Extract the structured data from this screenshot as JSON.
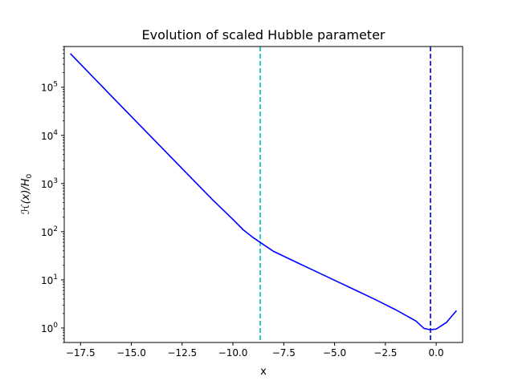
{
  "chart_data": {
    "type": "line",
    "title": "Evolution of scaled Hubble parameter",
    "xlabel": "x",
    "ylabel_parts": {
      "main": "ℋ(x)/H",
      "sub": "0"
    },
    "xlim": [
      -18.3,
      1.3
    ],
    "ylim": [
      0.5,
      700000
    ],
    "yscale": "log",
    "grid": false,
    "x_ticks": [
      -17.5,
      -15.0,
      -12.5,
      -10.0,
      -7.5,
      -5.0,
      -2.5,
      0.0
    ],
    "x_tick_labels": [
      "−17.5",
      "−15.0",
      "−12.5",
      "−10.0",
      "−7.5",
      "−5.0",
      "−2.5",
      "0.0"
    ],
    "y_ticks": [
      1,
      10,
      100,
      1000,
      10000,
      100000
    ],
    "y_tick_labels": [
      {
        "base": "10",
        "exp": "0"
      },
      {
        "base": "10",
        "exp": "1"
      },
      {
        "base": "10",
        "exp": "2"
      },
      {
        "base": "10",
        "exp": "3"
      },
      {
        "base": "10",
        "exp": "4"
      },
      {
        "base": "10",
        "exp": "5"
      }
    ],
    "series": [
      {
        "color": "#0000ff",
        "style": "solid",
        "x": [
          -18.0,
          -16.0,
          -14.0,
          -12.0,
          -11.0,
          -10.0,
          -9.5,
          -9.0,
          -8.66,
          -8.0,
          -7.0,
          -6.0,
          -5.0,
          -4.0,
          -3.0,
          -2.0,
          -1.0,
          -0.6,
          -0.3,
          0.0,
          0.5,
          1.0
        ],
        "y": [
          500000,
          67000,
          9100,
          1240,
          460,
          180,
          110,
          75,
          60,
          39,
          24.5,
          15.5,
          9.8,
          6.2,
          3.9,
          2.4,
          1.4,
          0.98,
          0.92,
          0.95,
          1.3,
          2.3
        ]
      }
    ],
    "vlines": [
      {
        "x": -8.66,
        "color": "#00bfbf",
        "style": "dashed"
      },
      {
        "x": -0.28,
        "color": "#0000cd",
        "style": "dashed"
      }
    ]
  }
}
